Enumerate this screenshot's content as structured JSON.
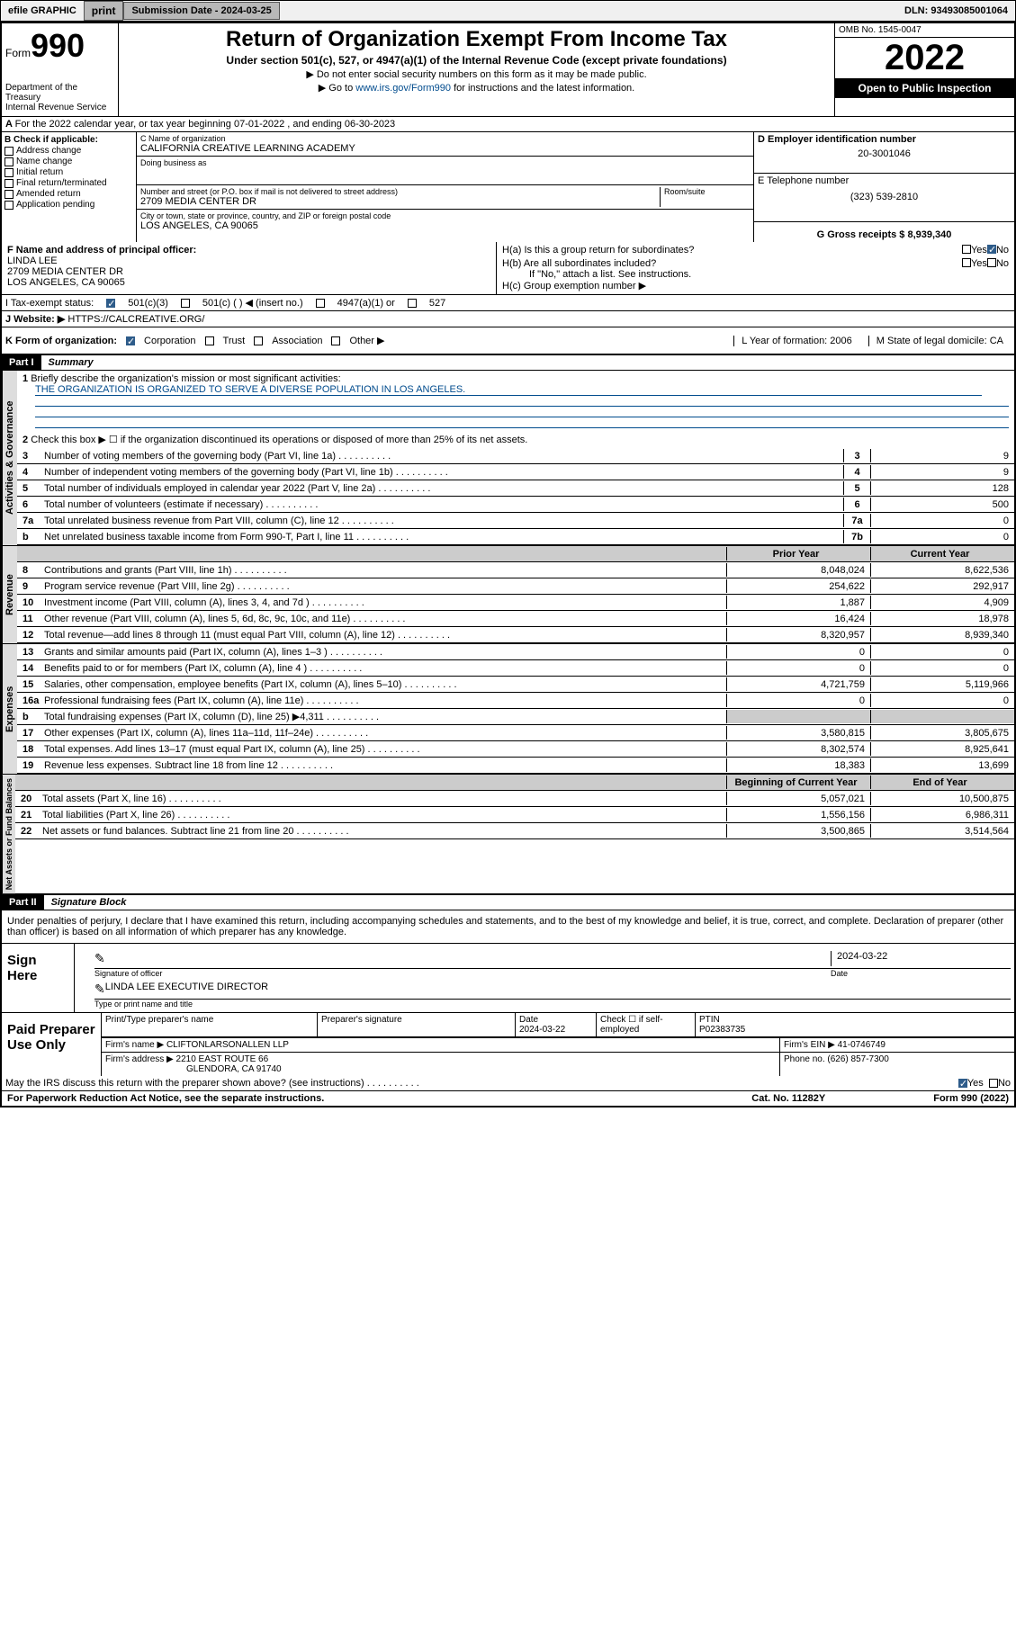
{
  "topbar": {
    "efile": "efile GRAPHIC",
    "print": "print",
    "sub_label": "Submission Date - 2024-03-25",
    "dln": "DLN: 93493085001064"
  },
  "header": {
    "form_prefix": "Form",
    "form_num": "990",
    "dept": "Department of the Treasury",
    "irs": "Internal Revenue Service",
    "title": "Return of Organization Exempt From Income Tax",
    "subtitle": "Under section 501(c), 527, or 4947(a)(1) of the Internal Revenue Code (except private foundations)",
    "note1": "▶ Do not enter social security numbers on this form as it may be made public.",
    "note2_pre": "▶ Go to ",
    "note2_link": "www.irs.gov/Form990",
    "note2_post": " for instructions and the latest information.",
    "omb": "OMB No. 1545-0047",
    "year": "2022",
    "open": "Open to Public Inspection"
  },
  "rowA": {
    "text": "For the 2022 calendar year, or tax year beginning 07-01-2022   , and ending 06-30-2023"
  },
  "boxB": {
    "title": "B Check if applicable:",
    "items": [
      "Address change",
      "Name change",
      "Initial return",
      "Final return/terminated",
      "Amended return",
      "Application pending"
    ]
  },
  "boxC": {
    "name_label": "C Name of organization",
    "name": "CALIFORNIA CREATIVE LEARNING ACADEMY",
    "dba_label": "Doing business as",
    "addr_label": "Number and street (or P.O. box if mail is not delivered to street address)",
    "room_label": "Room/suite",
    "addr": "2709 MEDIA CENTER DR",
    "city_label": "City or town, state or province, country, and ZIP or foreign postal code",
    "city": "LOS ANGELES, CA  90065"
  },
  "boxD": {
    "label": "D Employer identification number",
    "val": "20-3001046",
    "e_label": "E Telephone number",
    "e_val": "(323) 539-2810",
    "g_label": "G Gross receipts $ 8,939,340"
  },
  "boxF": {
    "label": "F  Name and address of principal officer:",
    "name": "LINDA LEE",
    "addr1": "2709 MEDIA CENTER DR",
    "addr2": "LOS ANGELES, CA  90065"
  },
  "boxH": {
    "ha": "H(a)  Is this a group return for subordinates?",
    "hb": "H(b)  Are all subordinates included?",
    "hb_note": "If \"No,\" attach a list. See instructions.",
    "hc": "H(c)  Group exemption number ▶",
    "yes": "Yes",
    "no": "No"
  },
  "rowI": {
    "label": "I    Tax-exempt status:",
    "o1": "501(c)(3)",
    "o2": "501(c) (  ) ◀ (insert no.)",
    "o3": "4947(a)(1) or",
    "o4": "527"
  },
  "rowJ": {
    "label": "J    Website: ▶",
    "val": " HTTPS://CALCREATIVE.ORG/"
  },
  "rowK": {
    "label": "K Form of organization:",
    "o1": "Corporation",
    "o2": "Trust",
    "o3": "Association",
    "o4": "Other ▶",
    "l": "L Year of formation: 2006",
    "m": "M State of legal domicile: CA"
  },
  "part1": {
    "hdr": "Part I",
    "title": "Summary"
  },
  "summary": {
    "l1_label": "Briefly describe the organization's mission or most significant activities:",
    "l1_val": "THE ORGANIZATION IS ORGANIZED TO SERVE A DIVERSE POPULATION IN LOS ANGELES.",
    "l2": "Check this box ▶ ☐  if the organization discontinued its operations or disposed of more than 25% of its net assets.",
    "lines_gov": [
      {
        "n": "3",
        "t": "Number of voting members of the governing body (Part VI, line 1a)",
        "b": "3",
        "v": "9"
      },
      {
        "n": "4",
        "t": "Number of independent voting members of the governing body (Part VI, line 1b)",
        "b": "4",
        "v": "9"
      },
      {
        "n": "5",
        "t": "Total number of individuals employed in calendar year 2022 (Part V, line 2a)",
        "b": "5",
        "v": "128"
      },
      {
        "n": "6",
        "t": "Total number of volunteers (estimate if necessary)",
        "b": "6",
        "v": "500"
      },
      {
        "n": "7a",
        "t": "Total unrelated business revenue from Part VIII, column (C), line 12",
        "b": "7a",
        "v": "0"
      },
      {
        "n": "b",
        "t": "Net unrelated business taxable income from Form 990-T, Part I, line 11",
        "b": "7b",
        "v": "0"
      }
    ],
    "hdr_prior": "Prior Year",
    "hdr_curr": "Current Year",
    "lines_rev": [
      {
        "n": "8",
        "t": "Contributions and grants (Part VIII, line 1h)",
        "p": "8,048,024",
        "c": "8,622,536"
      },
      {
        "n": "9",
        "t": "Program service revenue (Part VIII, line 2g)",
        "p": "254,622",
        "c": "292,917"
      },
      {
        "n": "10",
        "t": "Investment income (Part VIII, column (A), lines 3, 4, and 7d )",
        "p": "1,887",
        "c": "4,909"
      },
      {
        "n": "11",
        "t": "Other revenue (Part VIII, column (A), lines 5, 6d, 8c, 9c, 10c, and 11e)",
        "p": "16,424",
        "c": "18,978"
      },
      {
        "n": "12",
        "t": "Total revenue—add lines 8 through 11 (must equal Part VIII, column (A), line 12)",
        "p": "8,320,957",
        "c": "8,939,340"
      }
    ],
    "lines_exp": [
      {
        "n": "13",
        "t": "Grants and similar amounts paid (Part IX, column (A), lines 1–3 )",
        "p": "0",
        "c": "0"
      },
      {
        "n": "14",
        "t": "Benefits paid to or for members (Part IX, column (A), line 4 )",
        "p": "0",
        "c": "0"
      },
      {
        "n": "15",
        "t": "Salaries, other compensation, employee benefits (Part IX, column (A), lines 5–10)",
        "p": "4,721,759",
        "c": "5,119,966"
      },
      {
        "n": "16a",
        "t": "Professional fundraising fees (Part IX, column (A), line 11e)",
        "p": "0",
        "c": "0"
      },
      {
        "n": "b",
        "t": "Total fundraising expenses (Part IX, column (D), line 25) ▶4,311",
        "p": "",
        "c": "",
        "shade": true
      },
      {
        "n": "17",
        "t": "Other expenses (Part IX, column (A), lines 11a–11d, 11f–24e)",
        "p": "3,580,815",
        "c": "3,805,675"
      },
      {
        "n": "18",
        "t": "Total expenses. Add lines 13–17 (must equal Part IX, column (A), line 25)",
        "p": "8,302,574",
        "c": "8,925,641"
      },
      {
        "n": "19",
        "t": "Revenue less expenses. Subtract line 18 from line 12",
        "p": "18,383",
        "c": "13,699"
      }
    ],
    "hdr_beg": "Beginning of Current Year",
    "hdr_end": "End of Year",
    "lines_net": [
      {
        "n": "20",
        "t": "Total assets (Part X, line 16)",
        "p": "5,057,021",
        "c": "10,500,875"
      },
      {
        "n": "21",
        "t": "Total liabilities (Part X, line 26)",
        "p": "1,556,156",
        "c": "6,986,311"
      },
      {
        "n": "22",
        "t": "Net assets or fund balances. Subtract line 21 from line 20",
        "p": "3,500,865",
        "c": "3,514,564"
      }
    ],
    "tab_gov": "Activities & Governance",
    "tab_rev": "Revenue",
    "tab_exp": "Expenses",
    "tab_net": "Net Assets or Fund Balances"
  },
  "part2": {
    "hdr": "Part II",
    "title": "Signature Block"
  },
  "sig": {
    "decl": "Under penalties of perjury, I declare that I have examined this return, including accompanying schedules and statements, and to the best of my knowledge and belief, it is true, correct, and complete. Declaration of preparer (other than officer) is based on all information of which preparer has any knowledge.",
    "sign_here": "Sign Here",
    "date": "2024-03-22",
    "sig_officer": "Signature of officer",
    "date_lbl": "Date",
    "officer": "LINDA LEE  EXECUTIVE DIRECTOR",
    "type_name": "Type or print name and title"
  },
  "prep": {
    "title": "Paid Preparer Use Only",
    "h1": "Print/Type preparer's name",
    "h2": "Preparer's signature",
    "h3": "Date",
    "h4": "Check ☐ if self-employed",
    "h5": "PTIN",
    "date": "2024-03-22",
    "ptin": "P02383735",
    "firm_name_lbl": "Firm's name   ▶",
    "firm_name": "CLIFTONLARSONALLEN LLP",
    "firm_ein_lbl": "Firm's EIN ▶",
    "firm_ein": "41-0746749",
    "firm_addr_lbl": "Firm's address ▶",
    "firm_addr1": "2210 EAST ROUTE 66",
    "firm_addr2": "GLENDORA, CA 91740",
    "phone_lbl": "Phone no.",
    "phone": "(626) 857-7300",
    "discuss": "May the IRS discuss this return with the preparer shown above? (see instructions)",
    "yes": "Yes",
    "no": "No"
  },
  "footer": {
    "left": "For Paperwork Reduction Act Notice, see the separate instructions.",
    "mid": "Cat. No. 11282Y",
    "right": "Form 990 (2022)"
  }
}
